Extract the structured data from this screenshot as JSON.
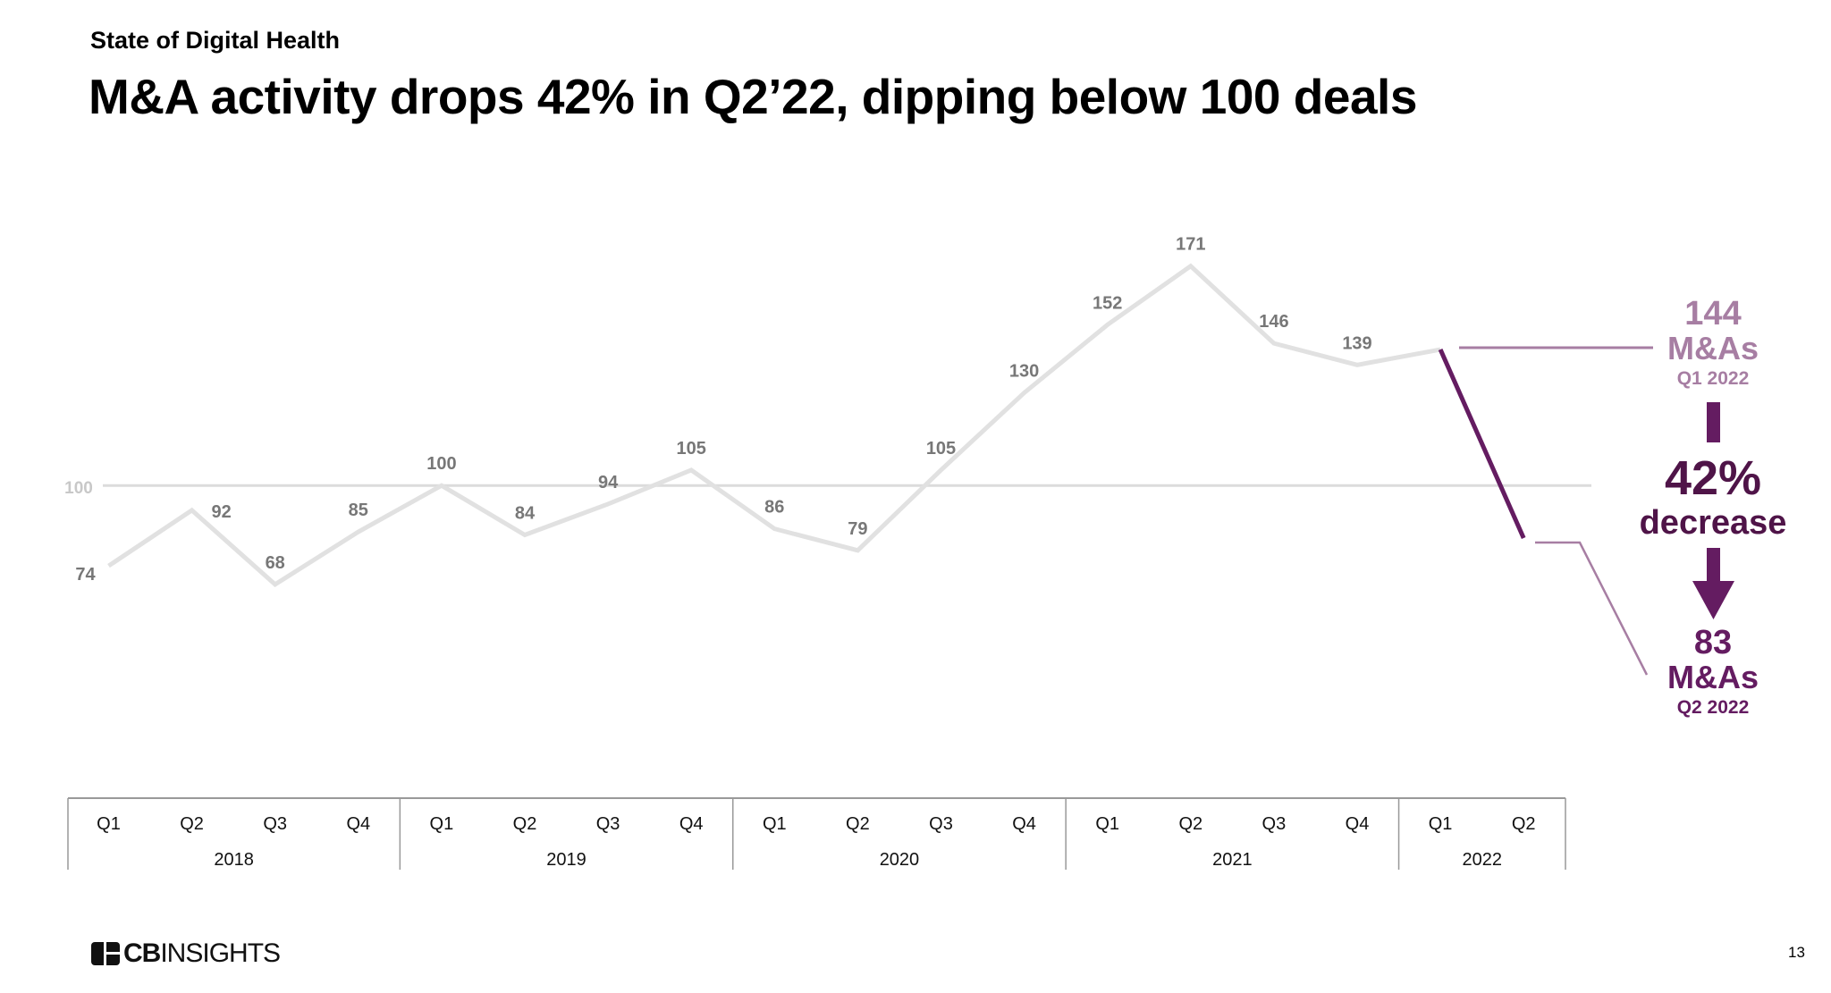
{
  "header": {
    "kicker": "State of Digital Health",
    "title": "M&A activity drops 42% in Q2’22, dipping below 100 deals"
  },
  "footer": {
    "logo_text_bold": "CB",
    "logo_text": "INSIGHTS",
    "page_number": "13"
  },
  "colors": {
    "line": "#e1e1e1",
    "label": "#777777",
    "purple_dark": "#641c61",
    "purple_light": "#a77ea3",
    "reference": "#dcdcdc"
  },
  "annotation": {
    "start_value": "144",
    "start_unit": "M&As",
    "start_period": "Q1 2022",
    "change_value": "42%",
    "change_label": "decrease",
    "end_value": "83",
    "end_unit": "M&As",
    "end_period": "Q2 2022"
  },
  "chart_data": {
    "type": "line",
    "title": "",
    "xlabel": "",
    "ylabel": "",
    "grid": false,
    "reference_line": {
      "value": 100,
      "label": "100"
    },
    "ylim": [
      0,
      171
    ],
    "categories": [
      "Q1",
      "Q2",
      "Q3",
      "Q4",
      "Q1",
      "Q2",
      "Q3",
      "Q4",
      "Q1",
      "Q2",
      "Q3",
      "Q4",
      "Q1",
      "Q2",
      "Q3",
      "Q4",
      "Q1",
      "Q2"
    ],
    "years": [
      {
        "label": "2018",
        "quarters": 4
      },
      {
        "label": "2019",
        "quarters": 4
      },
      {
        "label": "2020",
        "quarters": 4
      },
      {
        "label": "2021",
        "quarters": 4
      },
      {
        "label": "2022",
        "quarters": 2
      }
    ],
    "values": [
      74,
      92,
      68,
      85,
      100,
      84,
      94,
      105,
      86,
      79,
      105,
      130,
      152,
      171,
      146,
      139,
      144,
      83
    ],
    "highlight_segment": [
      "Q1 2022",
      "Q2 2022"
    ]
  }
}
